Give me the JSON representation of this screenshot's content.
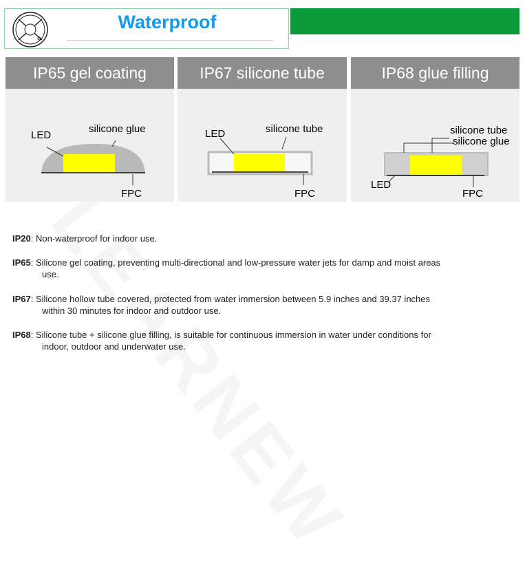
{
  "header": {
    "title": "Waterproof",
    "icon": "waterproof-led-icon"
  },
  "panels": [
    {
      "title": "IP65 gel coating",
      "labels": {
        "led": "LED",
        "glue": "silicone glue",
        "fpc": "FPC"
      }
    },
    {
      "title": "IP67 silicone tube",
      "labels": {
        "led": "LED",
        "tube": "silicone tube",
        "fpc": "FPC"
      }
    },
    {
      "title": "IP68 glue filling",
      "labels": {
        "led": "LED",
        "tube": "silicone tube",
        "glue": "silicone glue",
        "fpc": "FPC"
      }
    }
  ],
  "descriptions": [
    {
      "code": "IP20",
      "text": ": Non-waterproof for indoor use.",
      "cont": ""
    },
    {
      "code": "IP65",
      "text": ": Silicone gel coating, preventing multi-directional and low-pressure water jets for damp and moist areas",
      "cont": "use."
    },
    {
      "code": "IP67",
      "text": ": Silicone hollow tube covered, protected from water immersion between 5.9 inches and 39.37 inches",
      "cont": "within 30 minutes for indoor and outdoor use."
    },
    {
      "code": "IP68",
      "text": ": Silicone tube + silicone glue filling, is suitable for continuous immersion in water under conditions for",
      "cont": "indoor, outdoor and underwater use."
    }
  ],
  "watermark": "LEARNEW",
  "colors": {
    "title": "#1598ef",
    "green": "#0a9a3a",
    "led": "#ffff00",
    "header": "#8e8e8e"
  }
}
